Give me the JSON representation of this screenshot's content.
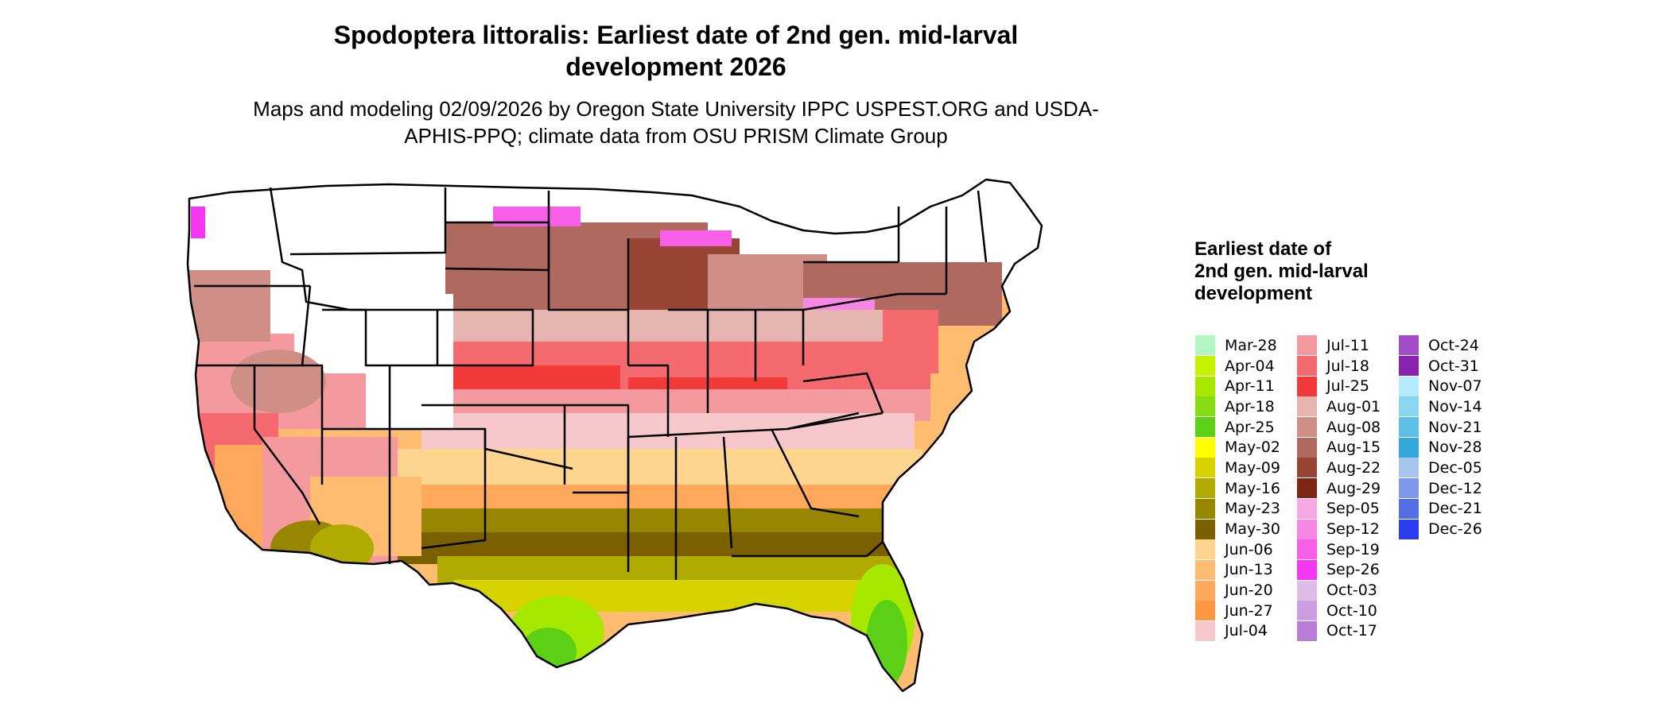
{
  "title": "Spodoptera littoralis: Earliest date of 2nd gen. mid-larval development 2026",
  "subtitle": "Maps and modeling 02/09/2026 by Oregon State University IPPC USPEST.ORG and USDA-APHIS-PPQ; climate data from OSU PRISM Climate Group",
  "legend": {
    "title": "Earliest date of 2nd gen. mid-larval development",
    "items": [
      {
        "label": "Mar-28",
        "color": "#b3f5c3"
      },
      {
        "label": "Apr-04",
        "color": "#c6f200"
      },
      {
        "label": "Apr-11",
        "color": "#a7e800"
      },
      {
        "label": "Apr-18",
        "color": "#86dc12"
      },
      {
        "label": "Apr-25",
        "color": "#5bd014"
      },
      {
        "label": "May-02",
        "color": "#ffff00"
      },
      {
        "label": "May-09",
        "color": "#d7d300"
      },
      {
        "label": "May-16",
        "color": "#b1aa00"
      },
      {
        "label": "May-23",
        "color": "#978700"
      },
      {
        "label": "May-30",
        "color": "#7a6000"
      },
      {
        "label": "Jun-06",
        "color": "#fdd58e"
      },
      {
        "label": "Jun-13",
        "color": "#fdbc70"
      },
      {
        "label": "Jun-20",
        "color": "#fda85a"
      },
      {
        "label": "Jun-27",
        "color": "#fd9640"
      },
      {
        "label": "Jul-04",
        "color": "#f6c8cc"
      },
      {
        "label": "Jul-11",
        "color": "#f49a9e"
      },
      {
        "label": "Jul-18",
        "color": "#f46a6e"
      },
      {
        "label": "Jul-25",
        "color": "#f23a3a"
      },
      {
        "label": "Aug-01",
        "color": "#e7b5b0"
      },
      {
        "label": "Aug-08",
        "color": "#cf8f87"
      },
      {
        "label": "Aug-15",
        "color": "#b0695f"
      },
      {
        "label": "Aug-22",
        "color": "#994536"
      },
      {
        "label": "Aug-29",
        "color": "#7e2412"
      },
      {
        "label": "Sep-05",
        "color": "#f7a8e2"
      },
      {
        "label": "Sep-12",
        "color": "#f687e4"
      },
      {
        "label": "Sep-19",
        "color": "#f75fe9"
      },
      {
        "label": "Sep-26",
        "color": "#f536f2"
      },
      {
        "label": "Oct-03",
        "color": "#e0bde8"
      },
      {
        "label": "Oct-10",
        "color": "#cc9de0"
      },
      {
        "label": "Oct-17",
        "color": "#b87dd6"
      },
      {
        "label": "Oct-24",
        "color": "#a24cc8"
      },
      {
        "label": "Oct-31",
        "color": "#8a22b0"
      },
      {
        "label": "Nov-07",
        "color": "#b5ecfb"
      },
      {
        "label": "Nov-14",
        "color": "#8ad6f0"
      },
      {
        "label": "Nov-21",
        "color": "#5cc0e6"
      },
      {
        "label": "Nov-28",
        "color": "#32a7dc"
      },
      {
        "label": "Dec-05",
        "color": "#a7c4ee"
      },
      {
        "label": "Dec-12",
        "color": "#7f98ea"
      },
      {
        "label": "Dec-21",
        "color": "#546ee8"
      },
      {
        "label": "Dec-26",
        "color": "#2a3cf0"
      }
    ]
  },
  "map": {
    "region": "Contiguous United States",
    "state_border_color": "#000000",
    "no_data_color": "#ffffff"
  }
}
